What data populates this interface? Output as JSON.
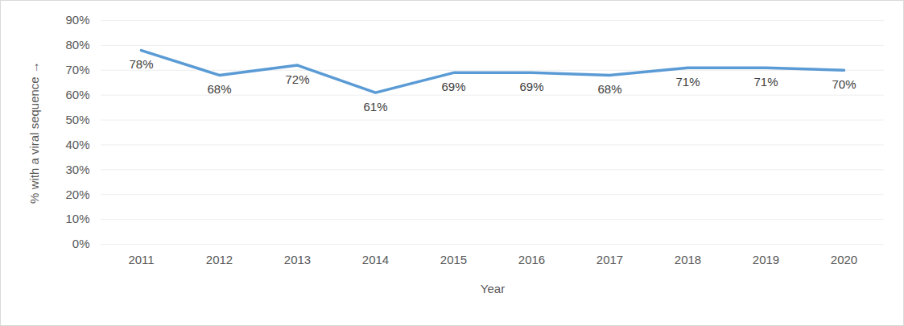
{
  "chart_data": {
    "type": "line",
    "xlabel": "Year",
    "ylabel": "% with a viral sequence",
    "categories": [
      "2011",
      "2012",
      "2013",
      "2014",
      "2015",
      "2016",
      "2017",
      "2018",
      "2019",
      "2020"
    ],
    "values": [
      78,
      68,
      72,
      61,
      69,
      69,
      68,
      71,
      71,
      70
    ],
    "value_labels": [
      "78%",
      "68%",
      "72%",
      "61%",
      "69%",
      "69%",
      "68%",
      "71%",
      "71%",
      "70%"
    ],
    "color": "#5b9bd5",
    "line_style": "solid",
    "data_labels": true,
    "grid": true,
    "ylim": [
      0,
      90
    ],
    "yticks": [
      {
        "value": 0,
        "label": "0%"
      },
      {
        "value": 10,
        "label": "10%"
      },
      {
        "value": 20,
        "label": "20%"
      },
      {
        "value": 30,
        "label": "30%"
      },
      {
        "value": 40,
        "label": "40%"
      },
      {
        "value": 50,
        "label": "50%"
      },
      {
        "value": 60,
        "label": "60%"
      },
      {
        "value": 70,
        "label": "70%"
      },
      {
        "value": 80,
        "label": "80%"
      },
      {
        "value": 90,
        "label": "90%"
      }
    ]
  }
}
